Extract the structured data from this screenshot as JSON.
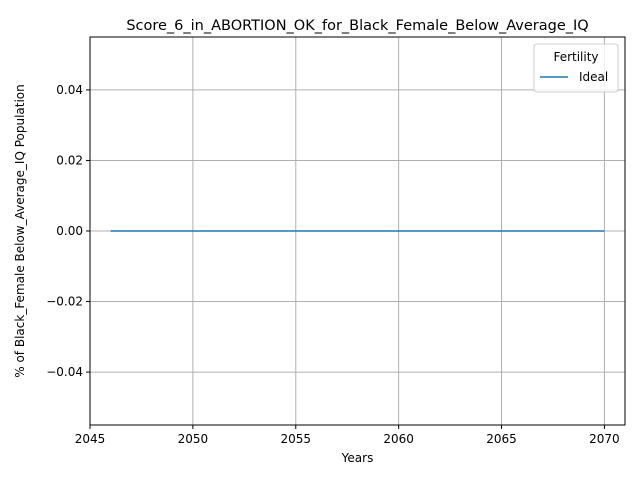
{
  "chart_data": {
    "type": "line",
    "title": "Score_6_in_ABORTION_OK_for_Black_Female_Below_Average_IQ",
    "xlabel": "Years",
    "ylabel": "% of Black_Female Below_Average_IQ Population",
    "xlim": [
      2045,
      2071
    ],
    "ylim": [
      -0.055,
      0.055
    ],
    "xticks": [
      2045,
      2050,
      2055,
      2060,
      2065,
      2070
    ],
    "yticks": [
      -0.04,
      -0.02,
      0.0,
      0.02,
      0.04
    ],
    "xtick_labels": [
      "2045",
      "2050",
      "2055",
      "2060",
      "2065",
      "2070"
    ],
    "ytick_labels": [
      "−0.04",
      "−0.02",
      "0.00",
      "0.02",
      "0.04"
    ],
    "grid": true,
    "legend": {
      "title": "Fertility",
      "location": "top-right"
    },
    "series": [
      {
        "name": "Ideal",
        "color": "#1f77b4",
        "x": [
          2046,
          2047,
          2048,
          2049,
          2050,
          2051,
          2052,
          2053,
          2054,
          2055,
          2056,
          2057,
          2058,
          2059,
          2060,
          2061,
          2062,
          2063,
          2064,
          2065,
          2066,
          2067,
          2068,
          2069,
          2070
        ],
        "y": [
          0,
          0,
          0,
          0,
          0,
          0,
          0,
          0,
          0,
          0,
          0,
          0,
          0,
          0,
          0,
          0,
          0,
          0,
          0,
          0,
          0,
          0,
          0,
          0,
          0
        ]
      }
    ]
  }
}
